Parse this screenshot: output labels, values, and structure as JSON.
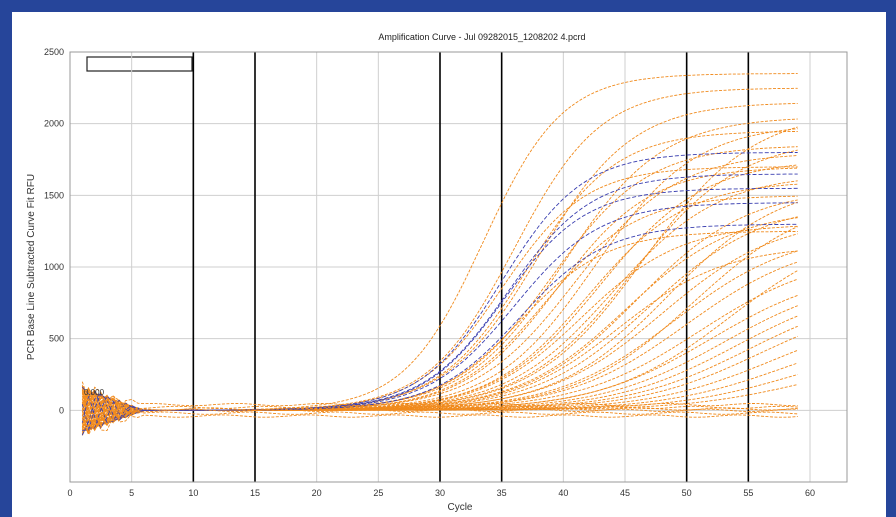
{
  "chart_data": {
    "type": "line",
    "title": "Amplification Curve - Jul 09282015_1208202 4.pcrd",
    "xlabel": "Cycle",
    "ylabel": "PCR Base Line Subtracted Curve Fit RFU",
    "xlim": [
      0,
      63
    ],
    "ylim": [
      -500,
      2500
    ],
    "x_ticks": [
      "0",
      "5",
      "10",
      "15",
      "20",
      "25",
      "30",
      "35",
      "40",
      "45",
      "50",
      "55",
      "60"
    ],
    "y_ticks": [
      "2500",
      "2000",
      "1500",
      "1000",
      "500",
      "0"
    ],
    "threshold_label": "0.000",
    "vertical_markers": [
      10,
      15,
      30,
      35,
      50,
      55
    ],
    "grid": true,
    "legend": "top-left (empty)",
    "colors": {
      "orange": "#f08a1c",
      "blue": "#3a3fb0",
      "grid": "#cfcfcf",
      "marker": "#000000"
    },
    "series": [
      {
        "color": "orange",
        "plateau": 2350,
        "midpoint": 33.5,
        "slope": 3.2
      },
      {
        "color": "orange",
        "plateau": 2250,
        "midpoint": 36,
        "slope": 3.5
      },
      {
        "color": "orange",
        "plateau": 2150,
        "midpoint": 38,
        "slope": 3.8
      },
      {
        "color": "orange",
        "plateau": 2050,
        "midpoint": 40,
        "slope": 4
      },
      {
        "color": "orange",
        "plateau": 1950,
        "midpoint": 37,
        "slope": 3.6
      },
      {
        "color": "orange",
        "plateau": 1850,
        "midpoint": 39,
        "slope": 3.9
      },
      {
        "color": "orange",
        "plateau": 1800,
        "midpoint": 41,
        "slope": 4.1
      },
      {
        "color": "orange",
        "plateau": 1750,
        "midpoint": 43,
        "slope": 4.2
      },
      {
        "color": "orange",
        "plateau": 1700,
        "midpoint": 35,
        "slope": 3.4
      },
      {
        "color": "orange",
        "plateau": 1650,
        "midpoint": 44,
        "slope": 4.3
      },
      {
        "color": "orange",
        "plateau": 1600,
        "midpoint": 42,
        "slope": 4
      },
      {
        "color": "orange",
        "plateau": 1550,
        "midpoint": 46,
        "slope": 4.5
      },
      {
        "color": "orange",
        "plateau": 1500,
        "midpoint": 38.5,
        "slope": 3.7
      },
      {
        "color": "orange",
        "plateau": 1450,
        "midpoint": 47,
        "slope": 4.6
      },
      {
        "color": "orange",
        "plateau": 1400,
        "midpoint": 45,
        "slope": 4.4
      },
      {
        "color": "orange",
        "plateau": 1350,
        "midpoint": 48,
        "slope": 4.7
      },
      {
        "color": "orange",
        "plateau": 1300,
        "midpoint": 41.5,
        "slope": 4
      },
      {
        "color": "orange",
        "plateau": 1250,
        "midpoint": 49,
        "slope": 4.8
      },
      {
        "color": "orange",
        "plateau": 1200,
        "midpoint": 50,
        "slope": 4.9
      },
      {
        "color": "orange",
        "plateau": 1150,
        "midpoint": 44.5,
        "slope": 4.3
      },
      {
        "color": "orange",
        "plateau": 1100,
        "midpoint": 51,
        "slope": 5
      },
      {
        "color": "orange",
        "plateau": 1000,
        "midpoint": 52,
        "slope": 5
      },
      {
        "color": "orange",
        "plateau": 950,
        "midpoint": 53,
        "slope": 5
      },
      {
        "color": "orange",
        "plateau": 900,
        "midpoint": 54,
        "slope": 5
      },
      {
        "color": "orange",
        "plateau": 850,
        "midpoint": 55,
        "slope": 5
      },
      {
        "color": "orange",
        "plateau": 800,
        "midpoint": 56,
        "slope": 5
      },
      {
        "color": "orange",
        "plateau": 700,
        "midpoint": 57,
        "slope": 5
      },
      {
        "color": "orange",
        "plateau": 600,
        "midpoint": 58,
        "slope": 5
      },
      {
        "color": "orange",
        "plateau": 500,
        "midpoint": 59,
        "slope": 5
      },
      {
        "color": "orange",
        "plateau": 400,
        "midpoint": 60,
        "slope": 5
      },
      {
        "color": "orange",
        "plateau": 1600,
        "midpoint": 48.5,
        "slope": 4.6
      },
      {
        "color": "orange",
        "plateau": 1500,
        "midpoint": 50.5,
        "slope": 4.8
      },
      {
        "color": "orange",
        "plateau": 1300,
        "midpoint": 53.5,
        "slope": 5
      },
      {
        "color": "orange",
        "plateau": 1900,
        "midpoint": 45.5,
        "slope": 4.4
      },
      {
        "color": "orange",
        "plateau": 2000,
        "midpoint": 42.5,
        "slope": 4.1
      },
      {
        "color": "orange",
        "plateau": 2100,
        "midpoint": 46.5,
        "slope": 4.5
      },
      {
        "color": "orange",
        "plateau": 1700,
        "midpoint": 39.5,
        "slope": 3.8
      },
      {
        "color": "orange",
        "plateau": 1250,
        "midpoint": 36.5,
        "slope": 3.5
      },
      {
        "color": "blue",
        "plateau": 1800,
        "midpoint": 35,
        "slope": 3.3
      },
      {
        "color": "blue",
        "plateau": 1650,
        "midpoint": 35.5,
        "slope": 3.4
      },
      {
        "color": "blue",
        "plateau": 1450,
        "midpoint": 36,
        "slope": 3.5
      },
      {
        "color": "blue",
        "plateau": 1300,
        "midpoint": 36.5,
        "slope": 3.5
      },
      {
        "color": "blue",
        "plateau": 1550,
        "midpoint": 35.2,
        "slope": 3.3
      },
      {
        "color": "orange",
        "flat": true,
        "level": 0
      },
      {
        "color": "orange",
        "flat": true,
        "level": 20
      },
      {
        "color": "orange",
        "flat": true,
        "level": -20
      },
      {
        "color": "orange",
        "flat": true,
        "level": 40
      },
      {
        "color": "orange",
        "flat": true,
        "level": -40
      },
      {
        "color": "orange",
        "flat": true,
        "level": 10
      }
    ]
  }
}
